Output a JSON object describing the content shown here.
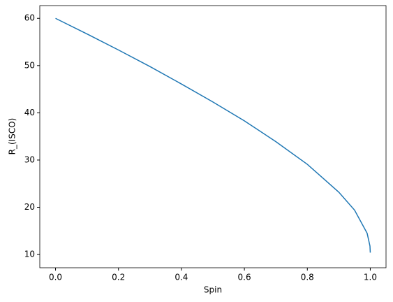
{
  "chart_data": {
    "type": "line",
    "x_label": "Spin",
    "y_label": "R_(ISCO)",
    "x": [
      0,
      0.1,
      0.2,
      0.3,
      0.4,
      0.5,
      0.6,
      0.7,
      0.8,
      0.9,
      0.95,
      0.99,
      0.999,
      1.0
    ],
    "series": [
      {
        "color": "#1f77b4",
        "values": [
          60,
          56.7,
          53.3,
          49.8,
          46.1,
          42.3,
          38.3,
          33.9,
          29.1,
          23.2,
          19.4,
          14.5,
          11.8,
          10.4
        ]
      }
    ],
    "xlim": [
      -0.05,
      1.05
    ],
    "ylim": [
      7.2,
      62.7
    ],
    "xticks": [
      {
        "value": 0,
        "label": "0.0"
      },
      0.2,
      0.4,
      0.6,
      0.8,
      {
        "value": 1,
        "label": "1.0"
      }
    ],
    "yticks": [
      10,
      20,
      30,
      40,
      50,
      60
    ]
  }
}
